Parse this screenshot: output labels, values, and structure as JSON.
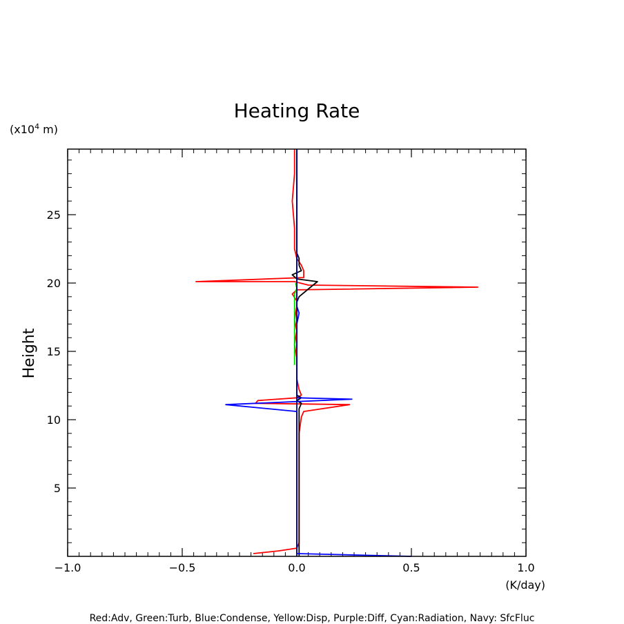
{
  "chart_data": {
    "type": "line",
    "title": "Heating Rate",
    "xlabel": "(K/day)",
    "ylabel": "Height",
    "y_unit_prefix": "(x10",
    "y_unit_exp": "4",
    "y_unit_suffix": " m)",
    "xlim": [
      -1.0,
      1.0
    ],
    "ylim": [
      0.0,
      29.8
    ],
    "x_ticks": [
      -1.0,
      -0.5,
      0.0,
      0.5,
      1.0
    ],
    "x_tick_labels": [
      "−1.0",
      "−0.5",
      "0.0",
      "0.5",
      "1.0"
    ],
    "y_ticks": [
      5,
      10,
      15,
      20,
      25
    ],
    "y_tick_labels": [
      "5",
      "10",
      "15",
      "20",
      "25"
    ],
    "legend_text": "Red:Adv, Green:Turb, Blue:Condense, Yellow:Disp, Purple:Diff, Cyan:Radiation, Navy: SfcFluc",
    "series": [
      {
        "name": "Red:Adv",
        "color": "#ff0000",
        "points": [
          [
            -0.19,
            0.2
          ],
          [
            -0.08,
            0.4
          ],
          [
            0.0,
            0.6
          ],
          [
            0.01,
            1.0
          ],
          [
            0.01,
            5.0
          ],
          [
            0.01,
            9.0
          ],
          [
            0.02,
            10.2
          ],
          [
            0.03,
            10.6
          ],
          [
            0.23,
            11.1
          ],
          [
            -0.18,
            11.2
          ],
          [
            -0.17,
            11.4
          ],
          [
            0.0,
            11.6
          ],
          [
            0.02,
            11.8
          ],
          [
            0.01,
            12.2
          ],
          [
            0.0,
            13.0
          ],
          [
            0.0,
            14.5
          ],
          [
            -0.01,
            15.5
          ],
          [
            0.0,
            16.5
          ],
          [
            -0.01,
            17.3
          ],
          [
            0.0,
            18.3
          ],
          [
            0.0,
            18.7
          ],
          [
            -0.02,
            19.2
          ],
          [
            0.0,
            19.5
          ],
          [
            0.79,
            19.7
          ],
          [
            0.05,
            19.85
          ],
          [
            -0.01,
            20.1
          ],
          [
            -0.44,
            20.1
          ],
          [
            0.03,
            20.4
          ],
          [
            0.03,
            20.9
          ],
          [
            0.02,
            21.3
          ],
          [
            0.0,
            21.8
          ],
          [
            -0.01,
            22.5
          ],
          [
            -0.01,
            24.0
          ],
          [
            -0.02,
            26.0
          ],
          [
            -0.01,
            28.0
          ],
          [
            -0.01,
            29.8
          ]
        ]
      },
      {
        "name": "Black",
        "color": "#000000",
        "points": [
          [
            0.01,
            0.0
          ],
          [
            0.01,
            5.0
          ],
          [
            0.01,
            10.0
          ],
          [
            0.01,
            10.8
          ],
          [
            0.02,
            11.2
          ],
          [
            0.0,
            11.4
          ],
          [
            0.02,
            11.6
          ],
          [
            0.0,
            11.8
          ],
          [
            0.0,
            14.0
          ],
          [
            0.0,
            18.0
          ],
          [
            0.0,
            18.6
          ],
          [
            0.01,
            19.0
          ],
          [
            0.06,
            19.7
          ],
          [
            0.09,
            20.1
          ],
          [
            0.0,
            20.3
          ],
          [
            -0.02,
            20.6
          ],
          [
            0.02,
            20.9
          ],
          [
            0.01,
            21.3
          ],
          [
            0.01,
            21.8
          ],
          [
            0.0,
            22.2
          ],
          [
            0.0,
            25.0
          ],
          [
            0.0,
            29.8
          ]
        ]
      },
      {
        "name": "Green:Turb",
        "color": "#00dd00",
        "points": [
          [
            -0.01,
            14.0
          ],
          [
            -0.01,
            15.5
          ],
          [
            -0.01,
            17.0
          ],
          [
            -0.01,
            18.5
          ],
          [
            -0.01,
            19.2
          ],
          [
            0.0,
            19.6
          ],
          [
            -0.005,
            20.0
          ]
        ]
      },
      {
        "name": "Blue:Condense",
        "color": "#0000ff",
        "points": [
          [
            0.5,
            0.0
          ],
          [
            0.25,
            0.1
          ],
          [
            0.0,
            0.2
          ],
          [
            0.0,
            1.0
          ],
          [
            0.0,
            10.6
          ],
          [
            -0.31,
            11.1
          ],
          [
            0.24,
            11.5
          ],
          [
            0.0,
            11.6
          ],
          [
            0.0,
            12.0
          ],
          [
            0.0,
            13.5
          ],
          [
            0.0,
            16.0
          ],
          [
            0.0,
            17.0
          ],
          [
            0.01,
            17.8
          ],
          [
            0.0,
            18.3
          ],
          [
            0.0,
            18.8
          ],
          [
            0.0,
            19.5
          ],
          [
            0.0,
            20.5
          ],
          [
            0.0,
            29.8
          ]
        ]
      },
      {
        "name": "Navy: SfcFluc",
        "color": "#000080",
        "points": [
          [
            0.0,
            0.0
          ],
          [
            0.0,
            29.8
          ]
        ]
      }
    ]
  }
}
